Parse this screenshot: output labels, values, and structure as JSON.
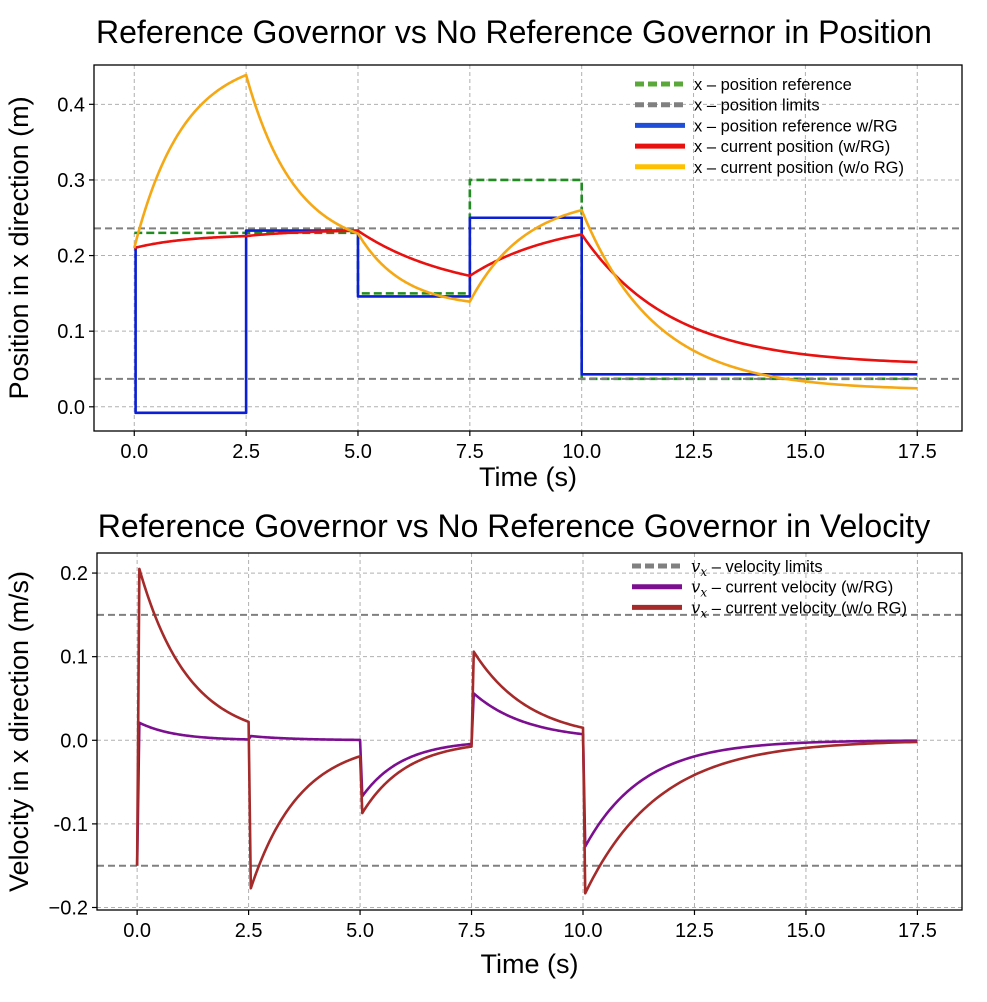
{
  "chart_data": [
    {
      "type": "line",
      "title": "Reference Governor vs No Reference Governor in Position",
      "xlabel": "Time (s)",
      "ylabel": "Position in x direction (m)",
      "xlim": [
        -0.9,
        18.5
      ],
      "ylim": [
        -0.032,
        0.452
      ],
      "xticks": [
        0.0,
        2.5,
        5.0,
        7.5,
        10.0,
        12.5,
        15.0,
        17.5
      ],
      "xtick_labels": [
        "0.0",
        "2.5",
        "5.0",
        "7.5",
        "10.0",
        "12.5",
        "15.0",
        "17.5"
      ],
      "yticks": [
        0.0,
        0.1,
        0.2,
        0.3,
        0.4
      ],
      "ytick_labels": [
        "0.0",
        "0.1",
        "0.2",
        "0.3",
        "0.4"
      ],
      "grid": true,
      "legend_position": "top-right",
      "series": [
        {
          "name": "x – position reference",
          "color": "#228B22",
          "legend_color": "#5aa83a",
          "style": "dashed",
          "kind": "steps",
          "steps": [
            [
              0.0,
              0.23
            ],
            [
              2.5,
              0.23
            ],
            [
              5.0,
              0.15
            ],
            [
              7.5,
              0.3
            ],
            [
              10.0,
              0.037
            ],
            [
              17.5,
              0.037
            ]
          ]
        },
        {
          "name": "x – position limits",
          "color": "#808080",
          "style": "dashed",
          "kind": "hlines",
          "hlines": [
            0.236,
            0.037
          ]
        },
        {
          "name": "x – position reference w/RG",
          "color": "#0a1fd6",
          "legend_color": "#1f4fd8",
          "style": "solid",
          "kind": "steps",
          "steps": [
            [
              0.0,
              0.21
            ],
            [
              0.03,
              -0.008
            ],
            [
              2.5,
              0.233
            ],
            [
              5.0,
              0.146
            ],
            [
              7.5,
              0.25
            ],
            [
              10.0,
              0.043
            ],
            [
              17.5,
              0.043
            ]
          ]
        },
        {
          "name": "x – current position (w/RG)",
          "color": "#e8110f",
          "style": "solid",
          "kind": "response",
          "start": 0.21,
          "segments": [
            [
              0.0,
              2.5,
              0.228,
              1.2
            ],
            [
              2.5,
              5.0,
              0.234,
              1.3
            ],
            [
              5.0,
              7.5,
              0.145,
              2.2
            ],
            [
              7.5,
              10.0,
              0.25,
              2.0
            ],
            [
              10.0,
              17.5,
              0.055,
              2.0
            ]
          ]
        },
        {
          "name": "x – current position (w/o RG)",
          "color": "#f5a814",
          "legend_color": "#ffc000",
          "style": "solid",
          "kind": "response",
          "start": 0.21,
          "segments": [
            [
              0.0,
              2.5,
              0.465,
              1.1
            ],
            [
              2.5,
              5.0,
              0.205,
              1.1
            ],
            [
              5.0,
              7.5,
              0.131,
              1.0
            ],
            [
              7.5,
              10.0,
              0.279,
              1.25
            ],
            [
              10.0,
              17.5,
              0.022,
              1.65
            ]
          ]
        }
      ]
    },
    {
      "type": "line",
      "title": "Reference Governor vs No Reference Governor in Velocity",
      "xlabel": "Time (s)",
      "ylabel": "Velocity in x direction (m/s)",
      "xlim": [
        -0.9,
        18.5
      ],
      "ylim": [
        -0.203,
        0.224
      ],
      "xticks": [
        0.0,
        2.5,
        5.0,
        7.5,
        10.0,
        12.5,
        15.0,
        17.5
      ],
      "xtick_labels": [
        "0.0",
        "2.5",
        "5.0",
        "7.5",
        "10.0",
        "12.5",
        "15.0",
        "17.5"
      ],
      "yticks": [
        -0.2,
        -0.1,
        0.0,
        0.1,
        0.2
      ],
      "ytick_labels": [
        "−0.2",
        "-0.1",
        "0.0",
        "0.1",
        "0.2"
      ],
      "grid": true,
      "legend_position": "top-right",
      "series": [
        {
          "name_symbol": "v",
          "name_sub": "x",
          "name_rest": " – velocity limits",
          "color": "#808080",
          "style": "dashed",
          "kind": "hlines",
          "hlines": [
            0.15,
            -0.15
          ]
        },
        {
          "name_symbol": "v",
          "name_sub": "x",
          "name_rest": " – current velocity (w/RG)",
          "color": "#7b0f8f",
          "style": "solid",
          "kind": "decays",
          "start": -0.15,
          "segments": [
            [
              0.0,
              2.5,
              0.021,
              0.8
            ],
            [
              2.5,
              5.0,
              0.005,
              1.0
            ],
            [
              5.0,
              7.5,
              -0.067,
              0.9
            ],
            [
              7.5,
              10.0,
              0.056,
              1.2
            ],
            [
              10.0,
              17.5,
              -0.127,
              1.3
            ]
          ]
        },
        {
          "name_symbol": "v",
          "name_sub": "x",
          "name_rest": " – current velocity (w/o RG)",
          "color": "#a52a2a",
          "style": "solid",
          "kind": "decays",
          "start": -0.15,
          "segments": [
            [
              0.0,
              2.5,
              0.205,
              1.1
            ],
            [
              2.5,
              5.0,
              -0.177,
              1.1
            ],
            [
              5.0,
              7.5,
              -0.087,
              1.0
            ],
            [
              7.5,
              10.0,
              0.106,
              1.25
            ],
            [
              10.0,
              17.5,
              -0.183,
              1.65
            ]
          ]
        }
      ]
    }
  ]
}
